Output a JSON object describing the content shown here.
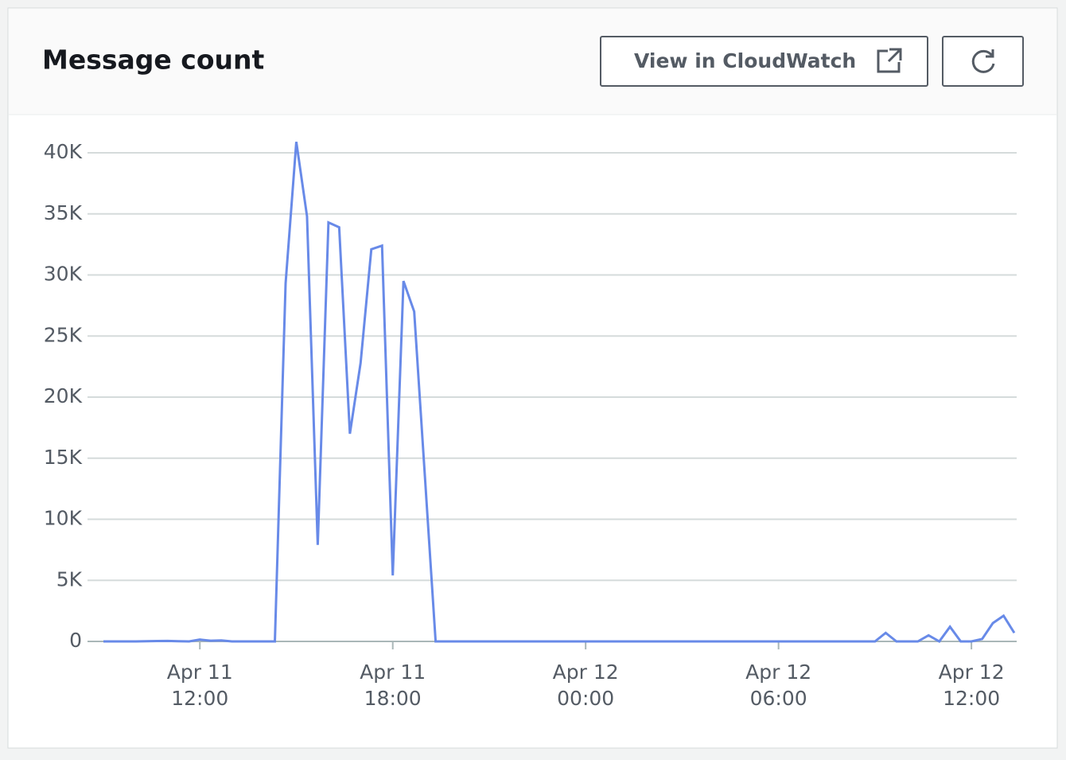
{
  "chart_data": {
    "type": "line",
    "title": "Message count",
    "color": "#688ae8",
    "x": [
      "Apr 11 09:00",
      "Apr 11 09:20",
      "Apr 11 09:40",
      "Apr 11 10:00",
      "Apr 11 10:20",
      "Apr 11 10:40",
      "Apr 11 11:00",
      "Apr 11 11:20",
      "Apr 11 11:40",
      "Apr 11 12:00",
      "Apr 11 12:20",
      "Apr 11 12:40",
      "Apr 11 13:00",
      "Apr 11 13:20",
      "Apr 11 13:40",
      "Apr 11 14:00",
      "Apr 11 14:20",
      "Apr 11 14:40",
      "Apr 11 15:00",
      "Apr 11 15:20",
      "Apr 11 15:40",
      "Apr 11 16:00",
      "Apr 11 16:20",
      "Apr 11 16:40",
      "Apr 11 17:00",
      "Apr 11 17:20",
      "Apr 11 17:40",
      "Apr 11 18:00",
      "Apr 11 18:20",
      "Apr 11 18:40",
      "Apr 11 19:00",
      "Apr 11 19:20",
      "Apr 11 19:40",
      "Apr 11 20:00",
      "Apr 11 20:20",
      "Apr 11 20:40",
      "Apr 11 21:00",
      "Apr 11 21:20",
      "Apr 11 21:40",
      "Apr 11 22:00",
      "Apr 11 22:20",
      "Apr 11 22:40",
      "Apr 11 23:00",
      "Apr 11 23:20",
      "Apr 11 23:40",
      "Apr 12 00:00",
      "Apr 12 00:20",
      "Apr 12 00:40",
      "Apr 12 01:00",
      "Apr 12 01:20",
      "Apr 12 01:40",
      "Apr 12 02:00",
      "Apr 12 02:20",
      "Apr 12 02:40",
      "Apr 12 03:00",
      "Apr 12 03:20",
      "Apr 12 03:40",
      "Apr 12 04:00",
      "Apr 12 04:20",
      "Apr 12 04:40",
      "Apr 12 05:00",
      "Apr 12 05:20",
      "Apr 12 05:40",
      "Apr 12 06:00",
      "Apr 12 06:20",
      "Apr 12 06:40",
      "Apr 12 07:00",
      "Apr 12 07:20",
      "Apr 12 07:40",
      "Apr 12 08:00",
      "Apr 12 08:20",
      "Apr 12 08:40",
      "Apr 12 09:00",
      "Apr 12 09:20",
      "Apr 12 09:40",
      "Apr 12 10:00",
      "Apr 12 10:20",
      "Apr 12 10:40",
      "Apr 12 11:00",
      "Apr 12 11:20",
      "Apr 12 11:40",
      "Apr 12 12:00",
      "Apr 12 12:20",
      "Apr 12 12:40",
      "Apr 12 13:00",
      "Apr 12 13:20"
    ],
    "values": [
      0,
      0,
      0,
      0,
      20,
      30,
      40,
      20,
      0,
      150,
      60,
      80,
      0,
      0,
      0,
      0,
      0,
      29300,
      40900,
      34800,
      7900,
      34300,
      33900,
      17000,
      22800,
      32100,
      32400,
      5400,
      29500,
      27000,
      13500,
      0,
      0,
      0,
      0,
      0,
      0,
      0,
      0,
      0,
      0,
      0,
      0,
      0,
      0,
      0,
      0,
      0,
      0,
      0,
      0,
      0,
      0,
      0,
      0,
      0,
      0,
      0,
      0,
      0,
      0,
      0,
      0,
      0,
      0,
      0,
      0,
      0,
      0,
      0,
      0,
      0,
      0,
      700,
      0,
      0,
      0,
      500,
      0,
      1200,
      0,
      0,
      200,
      1500,
      2100,
      700
    ],
    "ylim": [
      0,
      40000
    ],
    "yticks": [
      0,
      {
        "value": 5000,
        "label": "5K"
      },
      {
        "value": 10000,
        "label": "10K"
      },
      {
        "value": 15000,
        "label": "15K"
      },
      {
        "value": 20000,
        "label": "20K"
      },
      {
        "value": 25000,
        "label": "25K"
      },
      {
        "value": 30000,
        "label": "30K"
      },
      {
        "value": 35000,
        "label": "35K"
      },
      {
        "value": 40000,
        "label": "40K"
      }
    ],
    "xticks": [
      {
        "date": "Apr 11",
        "time": "12:00"
      },
      {
        "date": "Apr 11",
        "time": "18:00"
      },
      {
        "date": "Apr 12",
        "time": "00:00"
      },
      {
        "date": "Apr 12",
        "time": "06:00"
      },
      {
        "date": "Apr 12",
        "time": "12:00"
      }
    ],
    "grid": true
  },
  "header_button": "View in CloudWatch"
}
